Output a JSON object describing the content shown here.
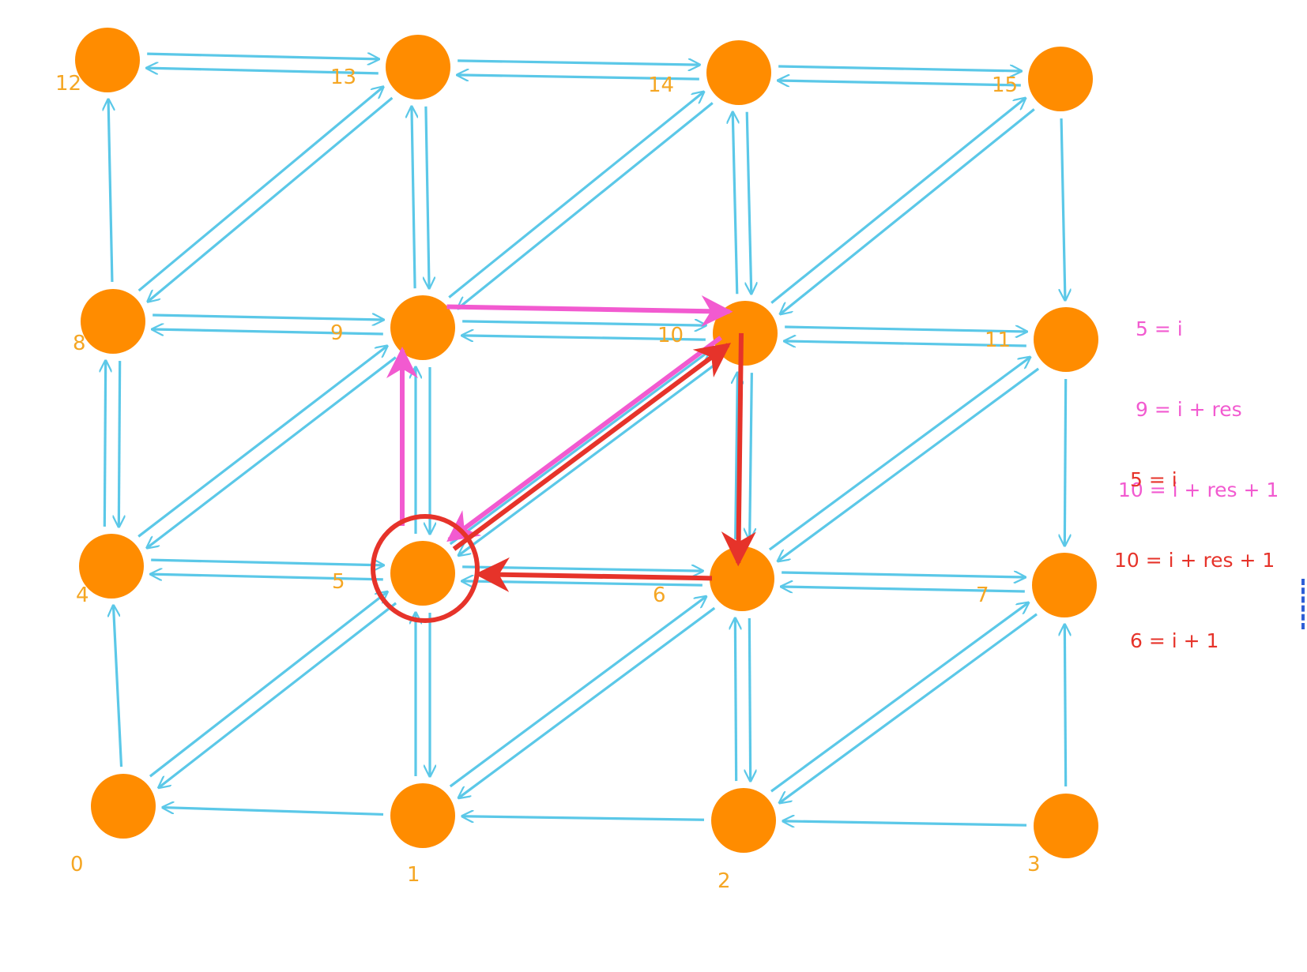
{
  "nodes": [
    {
      "label": "0"
    },
    {
      "label": "1"
    },
    {
      "label": "2"
    },
    {
      "label": "3"
    },
    {
      "label": "4"
    },
    {
      "label": "5"
    },
    {
      "label": "6"
    },
    {
      "label": "7"
    },
    {
      "label": "8"
    },
    {
      "label": "9"
    },
    {
      "label": "10"
    },
    {
      "label": "11"
    },
    {
      "label": "12"
    },
    {
      "label": "13"
    },
    {
      "label": "14"
    },
    {
      "label": "15"
    }
  ],
  "formulas": {
    "pink": [
      "5 = i",
      "9 = i + res",
      "10 = i + res + 1"
    ],
    "red": [
      "5 = i",
      "10 = i + res + 1",
      "6 = i + 1"
    ]
  },
  "colors": {
    "node": "#ff8c00",
    "node_label": "#f5a623",
    "edge": "#5bc8e8",
    "pink": "#f25ad0",
    "red": "#e6332a"
  }
}
